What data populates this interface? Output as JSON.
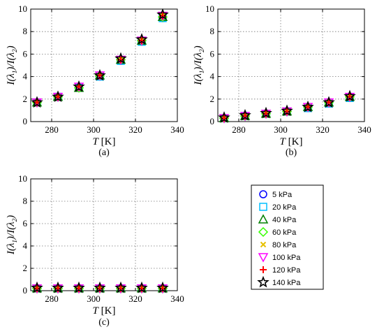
{
  "chart_data": [
    {
      "type": "scatter",
      "panel": "(a)",
      "xlabel": "T [K]",
      "ylabel": "I(λ1)/I(λ2)",
      "xlim": [
        270,
        340
      ],
      "ylim": [
        0,
        10
      ],
      "xticks": [
        280,
        300,
        320,
        340
      ],
      "yticks": [
        0,
        2,
        4,
        6,
        8,
        10
      ],
      "grid": true,
      "x": [
        273,
        283,
        293,
        303,
        313,
        323,
        333
      ],
      "series": [
        {
          "name": "5 kPa",
          "values": [
            1.7,
            2.2,
            3.0,
            4.0,
            5.4,
            7.1,
            9.2
          ]
        },
        {
          "name": "20 kPa",
          "values": [
            1.7,
            2.2,
            3.0,
            4.0,
            5.4,
            7.1,
            9.2
          ]
        },
        {
          "name": "40 kPa",
          "values": [
            1.7,
            2.2,
            3.0,
            4.1,
            5.5,
            7.2,
            9.3
          ]
        },
        {
          "name": "60 kPa",
          "values": [
            1.7,
            2.2,
            3.0,
            4.1,
            5.5,
            7.2,
            9.3
          ]
        },
        {
          "name": "80 kPa",
          "values": [
            1.7,
            2.2,
            3.0,
            4.1,
            5.5,
            7.2,
            9.4
          ]
        },
        {
          "name": "100 kPa",
          "values": [
            1.7,
            2.2,
            3.1,
            4.1,
            5.5,
            7.2,
            9.4
          ]
        },
        {
          "name": "120 kPa",
          "values": [
            1.7,
            2.2,
            3.1,
            4.1,
            5.5,
            7.2,
            9.4
          ]
        },
        {
          "name": "140 kPa",
          "values": [
            1.7,
            2.2,
            3.1,
            4.1,
            5.6,
            7.3,
            9.5
          ]
        }
      ]
    },
    {
      "type": "scatter",
      "panel": "(b)",
      "xlabel": "T [K]",
      "ylabel": "I(λ1)/I(λ2)",
      "xlim": [
        270,
        340
      ],
      "ylim": [
        0,
        10
      ],
      "xticks": [
        280,
        300,
        320,
        340
      ],
      "yticks": [
        0,
        2,
        4,
        6,
        8,
        10
      ],
      "grid": true,
      "x": [
        273,
        283,
        293,
        303,
        313,
        323,
        333
      ],
      "series": [
        {
          "name": "5 kPa",
          "values": [
            0.3,
            0.5,
            0.7,
            0.9,
            1.2,
            1.6,
            2.1
          ]
        },
        {
          "name": "20 kPa",
          "values": [
            0.3,
            0.5,
            0.7,
            0.9,
            1.2,
            1.6,
            2.1
          ]
        },
        {
          "name": "40 kPa",
          "values": [
            0.3,
            0.5,
            0.7,
            0.9,
            1.3,
            1.7,
            2.2
          ]
        },
        {
          "name": "60 kPa",
          "values": [
            0.3,
            0.5,
            0.7,
            0.9,
            1.3,
            1.7,
            2.2
          ]
        },
        {
          "name": "80 kPa",
          "values": [
            0.3,
            0.5,
            0.7,
            0.9,
            1.3,
            1.7,
            2.2
          ]
        },
        {
          "name": "100 kPa",
          "values": [
            0.3,
            0.5,
            0.7,
            0.9,
            1.3,
            1.7,
            2.2
          ]
        },
        {
          "name": "120 kPa",
          "values": [
            0.3,
            0.5,
            0.7,
            0.9,
            1.3,
            1.7,
            2.2
          ]
        },
        {
          "name": "140 kPa",
          "values": [
            0.35,
            0.55,
            0.75,
            0.95,
            1.3,
            1.7,
            2.25
          ]
        }
      ]
    },
    {
      "type": "scatter",
      "panel": "(c)",
      "xlabel": "T [K]",
      "ylabel": "I(λ1)/I(λ2)",
      "xlim": [
        270,
        340
      ],
      "ylim": [
        0,
        10
      ],
      "xticks": [
        280,
        300,
        320,
        340
      ],
      "yticks": [
        0,
        2,
        4,
        6,
        8,
        10
      ],
      "grid": true,
      "x": [
        273,
        283,
        293,
        303,
        313,
        323,
        333
      ],
      "series": [
        {
          "name": "5 kPa",
          "values": [
            0.2,
            0.2,
            0.2,
            0.2,
            0.2,
            0.2,
            0.2
          ]
        },
        {
          "name": "20 kPa",
          "values": [
            0.2,
            0.2,
            0.2,
            0.2,
            0.2,
            0.2,
            0.2
          ]
        },
        {
          "name": "40 kPa",
          "values": [
            0.2,
            0.2,
            0.2,
            0.2,
            0.2,
            0.2,
            0.2
          ]
        },
        {
          "name": "60 kPa",
          "values": [
            0.2,
            0.2,
            0.2,
            0.2,
            0.2,
            0.2,
            0.2
          ]
        },
        {
          "name": "80 kPa",
          "values": [
            0.2,
            0.2,
            0.2,
            0.2,
            0.2,
            0.2,
            0.2
          ]
        },
        {
          "name": "100 kPa",
          "values": [
            0.2,
            0.2,
            0.2,
            0.2,
            0.2,
            0.2,
            0.2
          ]
        },
        {
          "name": "120 kPa",
          "values": [
            0.2,
            0.2,
            0.2,
            0.2,
            0.2,
            0.2,
            0.2
          ]
        },
        {
          "name": "140 kPa",
          "values": [
            0.25,
            0.25,
            0.25,
            0.25,
            0.25,
            0.25,
            0.25
          ]
        }
      ]
    }
  ],
  "legend": {
    "entries": [
      {
        "label": "5 kPa",
        "marker": "circle",
        "color": "#0000ff"
      },
      {
        "label": "20 kPa",
        "marker": "square",
        "color": "#00bfff"
      },
      {
        "label": "40 kPa",
        "marker": "triangle-up",
        "color": "#008000"
      },
      {
        "label": "60 kPa",
        "marker": "diamond",
        "color": "#33ff00"
      },
      {
        "label": "80 kPa",
        "marker": "x",
        "color": "#e6c000"
      },
      {
        "label": "100 kPa",
        "marker": "triangle-down",
        "color": "#ff00ff"
      },
      {
        "label": "120 kPa",
        "marker": "plus",
        "color": "#ff0000"
      },
      {
        "label": "140 kPa",
        "marker": "star",
        "color": "#000000"
      }
    ]
  }
}
